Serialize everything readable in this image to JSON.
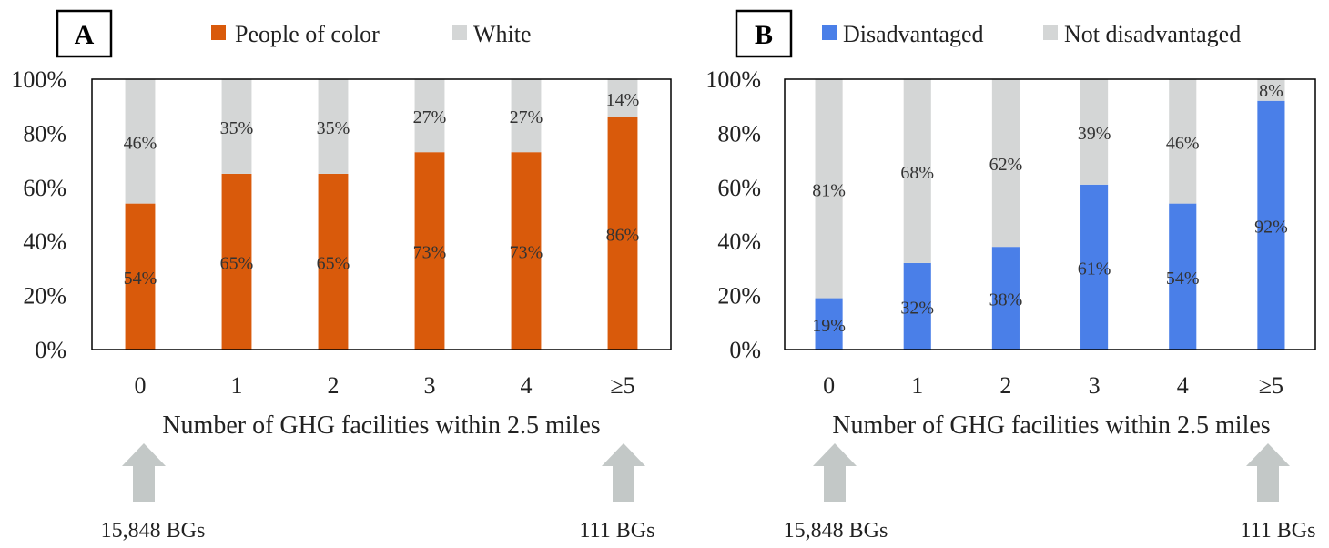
{
  "figure": {
    "panels": [
      {
        "letter": "A",
        "legend": {
          "primary": "People of color",
          "secondary": "White"
        },
        "xlabel": "Number of GHG facilities within 2.5 miles",
        "annotations": {
          "left": "15,848 BGs",
          "right": "111 BGs"
        }
      },
      {
        "letter": "B",
        "legend": {
          "primary": "Disadvantaged",
          "secondary": "Not disadvantaged"
        },
        "xlabel": "Number of GHG facilities within 2.5 miles",
        "annotations": {
          "left": "15,848 BGs",
          "right": "111 BGs"
        }
      }
    ]
  },
  "chart_data": [
    {
      "type": "bar",
      "stacked": true,
      "categories": [
        "0",
        "1",
        "2",
        "3",
        "4",
        "≥5"
      ],
      "series": [
        {
          "name": "People of color",
          "values": [
            54,
            65,
            65,
            73,
            73,
            86
          ],
          "labels": [
            "54%",
            "65%",
            "65%",
            "73%",
            "73%",
            "86%"
          ],
          "color": "#d95a0b"
        },
        {
          "name": "White",
          "values": [
            46,
            35,
            35,
            27,
            27,
            14
          ],
          "labels": [
            "46%",
            "35%",
            "35%",
            "27%",
            "27%",
            "14%"
          ],
          "color": "#d4d6d6"
        }
      ],
      "title": "",
      "xlabel": "Number of GHG facilities within 2.5 miles",
      "ylabel": "",
      "ylim": [
        0,
        100
      ],
      "yticks": [
        "0%",
        "20%",
        "40%",
        "60%",
        "80%",
        "100%"
      ],
      "grid": false,
      "legend_position": "top"
    },
    {
      "type": "bar",
      "stacked": true,
      "categories": [
        "0",
        "1",
        "2",
        "3",
        "4",
        "≥5"
      ],
      "series": [
        {
          "name": "Disadvantaged",
          "values": [
            19,
            32,
            38,
            61,
            54,
            92
          ],
          "labels": [
            "19%",
            "32%",
            "38%",
            "61%",
            "54%",
            "92%"
          ],
          "color": "#4a7fe8"
        },
        {
          "name": "Not disadvantaged",
          "values": [
            81,
            68,
            62,
            39,
            46,
            8
          ],
          "labels": [
            "81%",
            "68%",
            "62%",
            "39%",
            "46%",
            "8%"
          ],
          "color": "#d4d6d6"
        }
      ],
      "title": "",
      "xlabel": "Number of GHG facilities within 2.5 miles",
      "ylabel": "",
      "ylim": [
        0,
        100
      ],
      "yticks": [
        "0%",
        "20%",
        "40%",
        "60%",
        "80%",
        "100%"
      ],
      "grid": false,
      "legend_position": "top"
    }
  ],
  "colors": {
    "arrow": "#c3c8c7",
    "axis": "#000000",
    "text": "#222222"
  }
}
